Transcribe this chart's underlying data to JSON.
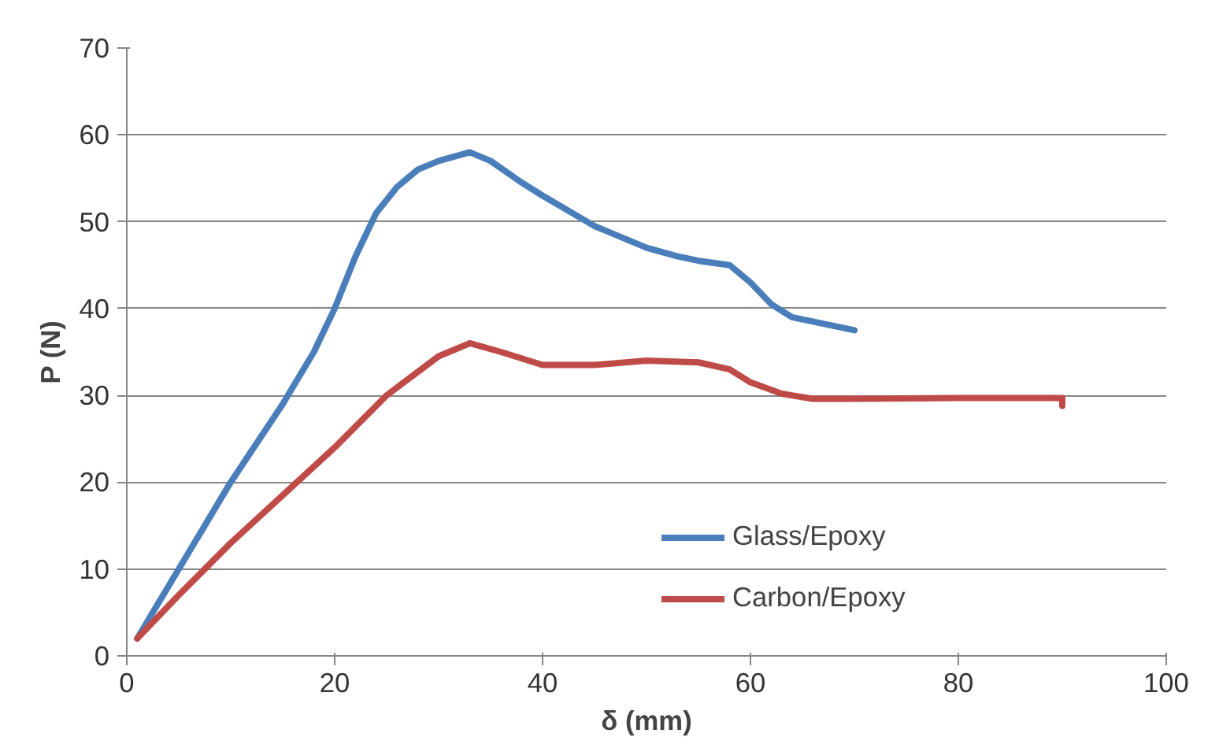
{
  "chart_data": {
    "type": "line",
    "xlabel": "δ (mm)",
    "ylabel": "P (N)",
    "xlim": [
      0,
      100
    ],
    "xticks": [
      0,
      20,
      40,
      60,
      80,
      100
    ],
    "ylim": [
      0,
      70
    ],
    "yticks": [
      0,
      10,
      20,
      30,
      40,
      50,
      60,
      70
    ],
    "grid": "y",
    "legend": "bottom right",
    "marker": "none",
    "line_style": "solid",
    "series": [
      {
        "name": "Glass/Epoxy",
        "color": "#4a7ebb",
        "x": [
          1,
          5,
          10,
          15,
          18,
          20,
          22,
          24,
          26,
          28,
          30,
          33,
          35,
          38,
          40,
          45,
          50,
          53,
          55,
          58,
          60,
          62,
          64,
          66,
          70
        ],
        "values": [
          2,
          10,
          20,
          29,
          35,
          40,
          46,
          51,
          54,
          56,
          57,
          58,
          57,
          54.5,
          53,
          49.5,
          47,
          46,
          45.5,
          45,
          43,
          40.5,
          39,
          38.5,
          37.5
        ]
      },
      {
        "name": "Carbon/Epoxy",
        "color": "#be4b48",
        "x": [
          1,
          5,
          10,
          15,
          20,
          25,
          30,
          33,
          36,
          40,
          45,
          50,
          55,
          58,
          60,
          63,
          66,
          70,
          80,
          90,
          90
        ],
        "values": [
          2,
          7,
          13,
          18.5,
          24,
          30,
          34.5,
          36,
          35,
          33.5,
          33.5,
          34,
          33.8,
          33,
          31.5,
          30.2,
          29.6,
          29.6,
          29.7,
          29.7,
          28.8
        ]
      }
    ]
  }
}
